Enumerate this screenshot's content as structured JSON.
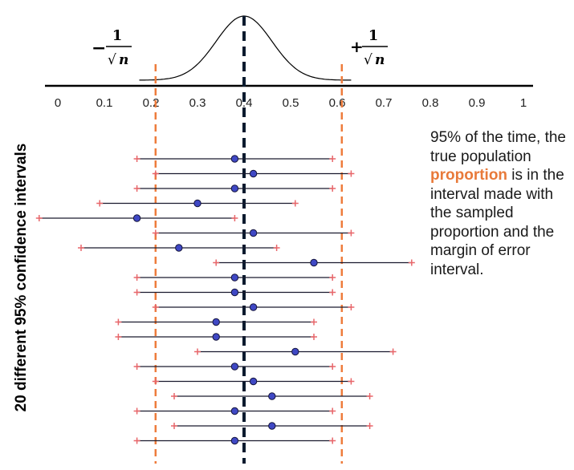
{
  "colors": {
    "vertical_dashed": "#ee7c3c",
    "center_line": "#0a1a2e",
    "interval_line": "#1a1a2e",
    "interval_end": "#e8666a",
    "point_fill": "#3f48c4",
    "point_stroke": "#14143c",
    "highlight": "#e87a3a"
  },
  "margin_labels": {
    "left": {
      "sign": "−",
      "numerator": "1",
      "radical": "√",
      "variable": "n"
    },
    "right": {
      "sign": "+",
      "numerator": "1",
      "radical": "√",
      "variable": "n"
    }
  },
  "y_axis_label": "20 different 95% confidence intervals",
  "note": {
    "before": "95% of the time, the true population ",
    "highlight": "proportion",
    "after": " is in the interval made with the sampled proportion and the margin of error interval."
  },
  "chart_data": {
    "type": "interval",
    "xlim": [
      0,
      1
    ],
    "x_ticks": [
      "0",
      "0.1",
      "0.2",
      "0.3",
      "0.4",
      "0.5",
      "0.6",
      "0.7",
      "0.8",
      "0.9",
      "1"
    ],
    "true_value": 0.4,
    "margin_bounds": [
      0.21,
      0.61
    ],
    "density_curve": {
      "mean": 0.4,
      "sd": 0.06
    },
    "intervals": [
      {
        "center": 0.38,
        "lower": 0.17,
        "upper": 0.59
      },
      {
        "center": 0.42,
        "lower": 0.21,
        "upper": 0.63
      },
      {
        "center": 0.38,
        "lower": 0.17,
        "upper": 0.59
      },
      {
        "center": 0.3,
        "lower": 0.09,
        "upper": 0.51
      },
      {
        "center": 0.17,
        "lower": -0.04,
        "upper": 0.38
      },
      {
        "center": 0.42,
        "lower": 0.21,
        "upper": 0.63
      },
      {
        "center": 0.26,
        "lower": 0.05,
        "upper": 0.47
      },
      {
        "center": 0.55,
        "lower": 0.34,
        "upper": 0.76
      },
      {
        "center": 0.38,
        "lower": 0.17,
        "upper": 0.59
      },
      {
        "center": 0.38,
        "lower": 0.17,
        "upper": 0.59
      },
      {
        "center": 0.42,
        "lower": 0.21,
        "upper": 0.63
      },
      {
        "center": 0.34,
        "lower": 0.13,
        "upper": 0.55
      },
      {
        "center": 0.34,
        "lower": 0.13,
        "upper": 0.55
      },
      {
        "center": 0.51,
        "lower": 0.3,
        "upper": 0.72
      },
      {
        "center": 0.38,
        "lower": 0.17,
        "upper": 0.59
      },
      {
        "center": 0.42,
        "lower": 0.21,
        "upper": 0.63
      },
      {
        "center": 0.46,
        "lower": 0.25,
        "upper": 0.67
      },
      {
        "center": 0.38,
        "lower": 0.17,
        "upper": 0.59
      },
      {
        "center": 0.46,
        "lower": 0.25,
        "upper": 0.67
      },
      {
        "center": 0.38,
        "lower": 0.17,
        "upper": 0.59
      }
    ]
  }
}
